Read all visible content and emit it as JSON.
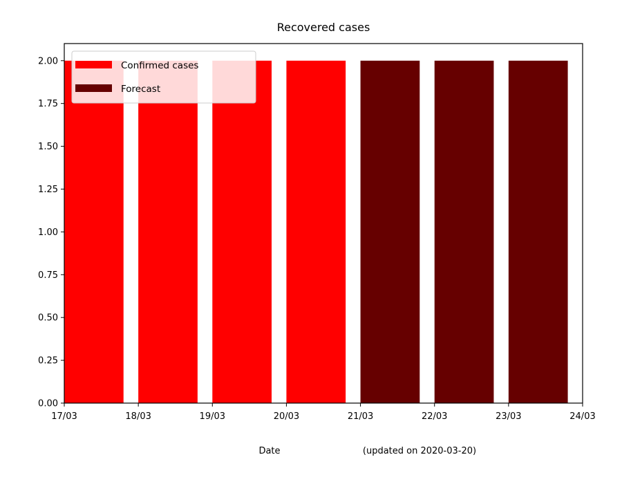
{
  "chart_data": {
    "type": "bar",
    "title": "Recovered cases",
    "xlabel": "Date",
    "xlabel_note": "(updated on 2020-03-20)",
    "ylabel": "",
    "x_tick_labels": [
      "17/03",
      "18/03",
      "19/03",
      "20/03",
      "21/03",
      "22/03",
      "23/03",
      "24/03"
    ],
    "y_tick_labels": [
      "0.00",
      "0.25",
      "0.50",
      "0.75",
      "1.00",
      "1.25",
      "1.50",
      "1.75",
      "2.00"
    ],
    "ylim": [
      0,
      2.1
    ],
    "xlim": [
      "17/03",
      "24/03"
    ],
    "grid": false,
    "legend_position": "top-left",
    "series": [
      {
        "name": "Confirmed cases",
        "color": "#ff0000",
        "categories": [
          "17/03",
          "18/03",
          "19/03",
          "20/03"
        ],
        "values": [
          2,
          2,
          2,
          2
        ]
      },
      {
        "name": "Forecast",
        "color": "#660000",
        "categories": [
          "21/03",
          "22/03",
          "23/03"
        ],
        "values": [
          2,
          2,
          2
        ]
      }
    ]
  }
}
